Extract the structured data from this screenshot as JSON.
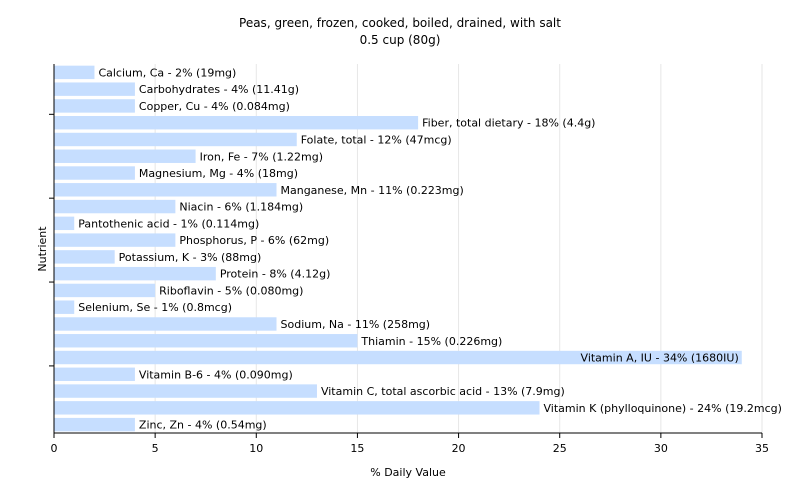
{
  "chart_data": {
    "type": "bar",
    "orientation": "horizontal",
    "title": "Peas, green, frozen, cooked, boiled, drained, with salt",
    "subtitle": "0.5 cup (80g)",
    "xlabel": "% Daily Value",
    "ylabel": "Nutrient",
    "xlim": [
      0,
      35
    ],
    "xticks": [
      0,
      5,
      10,
      15,
      20,
      25,
      30,
      35
    ],
    "grid": true,
    "bar_color": "#c6deff",
    "categories": [
      "Calcium, Ca - 2% (19mg)",
      "Carbohydrates - 4% (11.41g)",
      "Copper, Cu - 4% (0.084mg)",
      "Fiber, total dietary - 18% (4.4g)",
      "Folate, total - 12% (47mcg)",
      "Iron, Fe - 7% (1.22mg)",
      "Magnesium, Mg - 4% (18mg)",
      "Manganese, Mn - 11% (0.223mg)",
      "Niacin - 6% (1.184mg)",
      "Pantothenic acid - 1% (0.114mg)",
      "Phosphorus, P - 6% (62mg)",
      "Potassium, K - 3% (88mg)",
      "Protein - 8% (4.12g)",
      "Riboflavin - 5% (0.080mg)",
      "Selenium, Se - 1% (0.8mcg)",
      "Sodium, Na - 11% (258mg)",
      "Thiamin - 15% (0.226mg)",
      "Vitamin A, IU - 34% (1680IU)",
      "Vitamin B-6 - 4% (0.090mg)",
      "Vitamin C, total ascorbic acid - 13% (7.9mg)",
      "Vitamin K (phylloquinone) - 24% (19.2mcg)",
      "Zinc, Zn - 4% (0.54mg)"
    ],
    "values": [
      2,
      4,
      4,
      18,
      12,
      7,
      4,
      11,
      6,
      1,
      6,
      3,
      8,
      5,
      1,
      11,
      15,
      34,
      4,
      13,
      24,
      4
    ]
  }
}
